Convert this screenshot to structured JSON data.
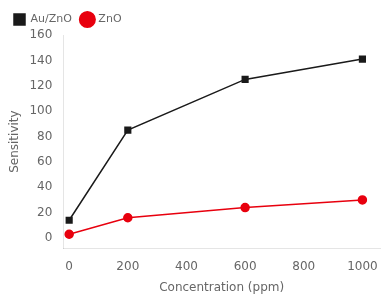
{
  "chart_data": {
    "type": "line",
    "xlabel": "Concentration (ppm)",
    "ylabel": "Sensitivity",
    "x": [
      0,
      200,
      600,
      1000
    ],
    "series": [
      {
        "name": "Au/ZnO",
        "color": "#1a1a1a",
        "marker": "square",
        "values": [
          14,
          85,
          125,
          141
        ]
      },
      {
        "name": "ZnO",
        "color": "#e8000e",
        "marker": "circle",
        "values": [
          3,
          16,
          24,
          30
        ]
      }
    ],
    "xlim": [
      -20,
      1060
    ],
    "ylim": [
      -8,
      160
    ],
    "xticks": [
      0,
      200,
      400,
      600,
      800,
      1000
    ],
    "yticks": [
      0,
      20,
      40,
      60,
      80,
      100,
      120,
      140,
      160
    ],
    "grid": false,
    "legend": "upper left"
  }
}
